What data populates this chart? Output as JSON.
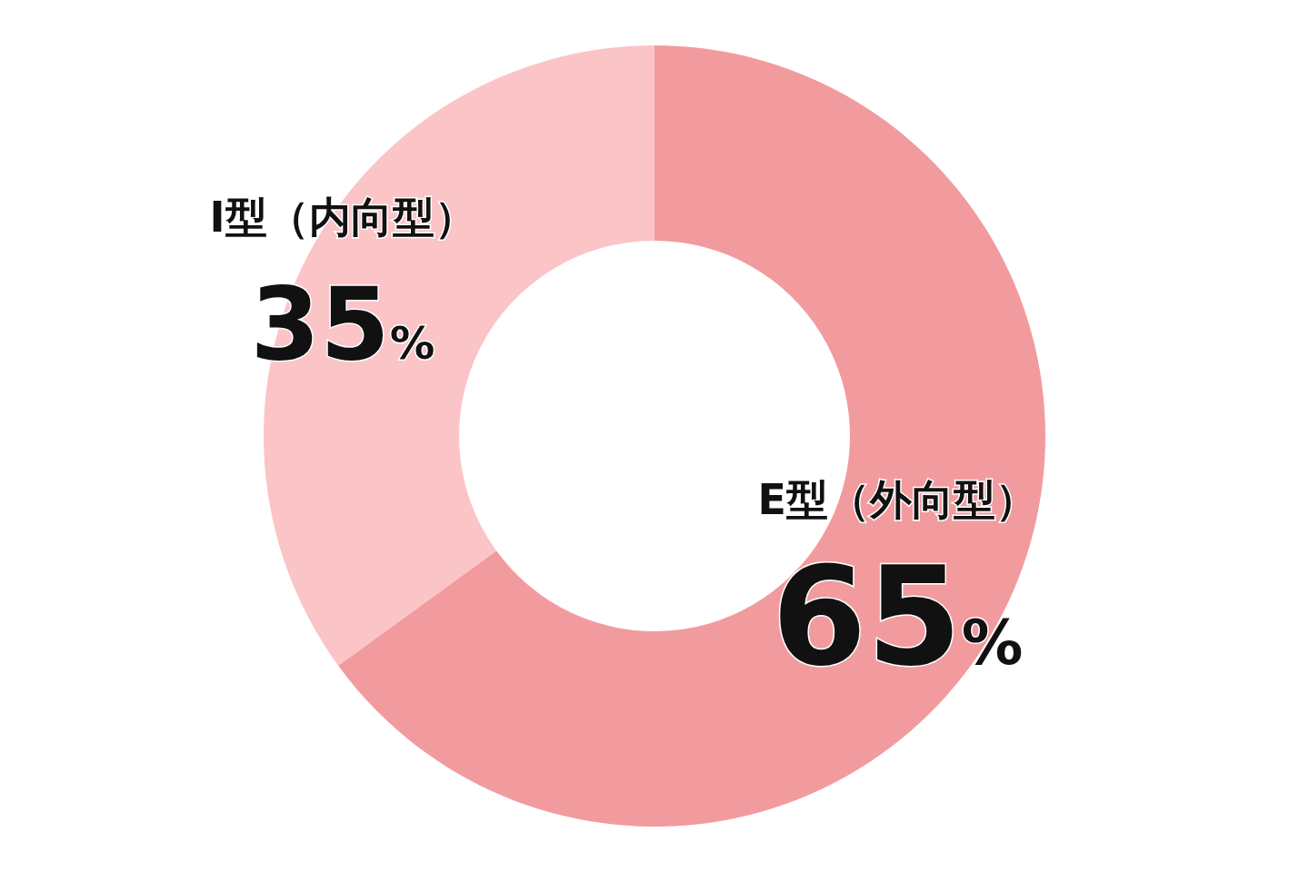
{
  "chart_data": {
    "type": "donut",
    "categories": [
      "E型（外向型）",
      "I型（内向型）"
    ],
    "values": [
      65,
      35
    ],
    "colors": [
      "#f29b9e",
      "#fbc4c7"
    ],
    "value_labels": [
      "65%",
      "35%"
    ]
  }
}
